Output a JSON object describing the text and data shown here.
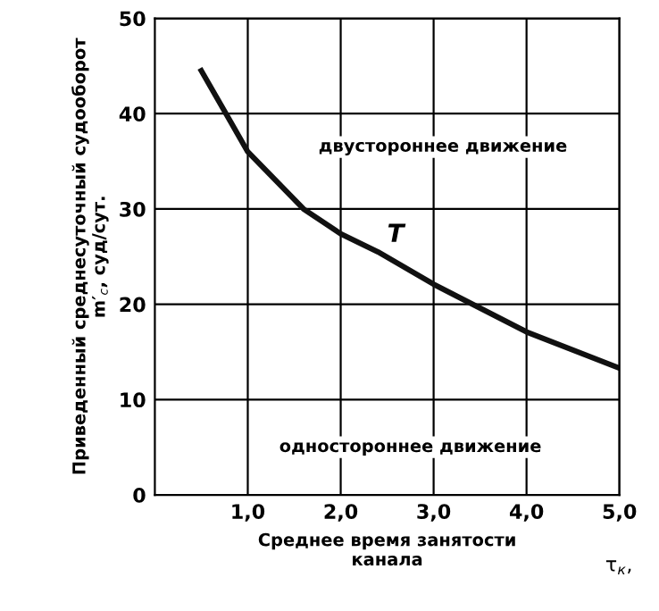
{
  "chart_data": {
    "type": "line",
    "xlabel": "Среднее время занятости\nканала",
    "ylabel": "Приведенный среднесуточный судооборот\nm′$_{c}$, суд/сут.",
    "x": [
      0.5,
      1.0,
      1.6,
      2.0,
      2.4,
      3.0,
      4.0,
      5.0
    ],
    "series": [
      {
        "color": "#111111",
        "values": [
          44.5,
          36.0,
          30.0,
          27.4,
          25.5,
          22.1,
          17.1,
          13.3
        ]
      }
    ],
    "xlim": [
      0,
      5
    ],
    "ylim": [
      0,
      50
    ],
    "xticks": [
      {
        "value": 1,
        "label": "1,0"
      },
      {
        "value": 2,
        "label": "2,0"
      },
      {
        "value": 3,
        "label": "3,0"
      },
      {
        "value": 4,
        "label": "4,0"
      },
      {
        "value": 5,
        "label": "5,0"
      }
    ],
    "yticks": [
      0,
      10,
      20,
      30,
      40,
      50
    ],
    "grid": true,
    "line_style": "solid",
    "annotations": [
      "двустороннее движение",
      "одностороннее движение",
      {
        "text": "Т",
        "x": 2.5,
        "y": 26
      },
      "τ$_{к}$,"
    ]
  }
}
